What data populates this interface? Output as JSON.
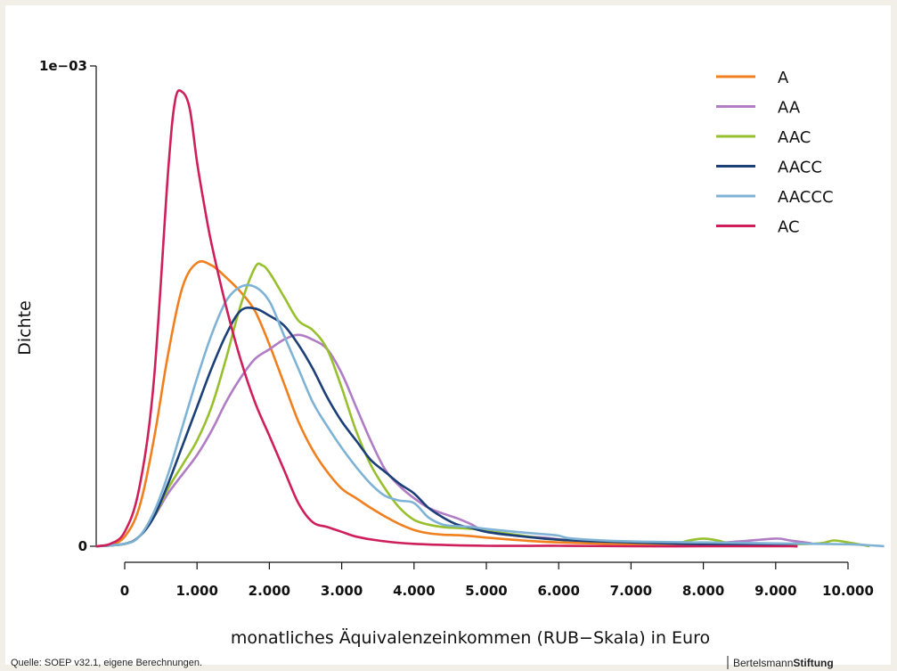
{
  "chart_data": {
    "type": "line",
    "xlabel": "monatliches Äquivalenzeinkommen (RUB−Skala) in Euro",
    "ylabel": "Dichte",
    "x_ticks": [
      0,
      1000,
      2000,
      3000,
      4000,
      5000,
      6000,
      7000,
      8000,
      9000,
      10000
    ],
    "x_tick_labels": [
      "0",
      "1.000",
      "2.000",
      "3.000",
      "4.000",
      "5.000",
      "6.000",
      "7.000",
      "8.000",
      "9.000",
      "10.000"
    ],
    "y_ticks": [
      0,
      0.001
    ],
    "y_tick_labels": [
      "0",
      "1e−03"
    ],
    "xlim": [
      -400,
      10500
    ],
    "ylim": [
      0,
      0.001
    ],
    "grid": false,
    "legend_position": "top-right",
    "series": [
      {
        "name": "A",
        "color": "#f07f1e",
        "x": [
          -400,
          -200,
          0,
          200,
          400,
          600,
          800,
          1000,
          1200,
          1400,
          1600,
          1800,
          2000,
          2200,
          2400,
          2600,
          2800,
          3000,
          3200,
          3400,
          3600,
          3800,
          4000,
          4200,
          4400,
          4600,
          4800,
          5000,
          5500,
          6000,
          7000,
          8000,
          9000,
          9300
        ],
        "y": [
          0,
          3e-06,
          2e-05,
          8e-05,
          0.00022,
          0.0004,
          0.00054,
          0.00059,
          0.000585,
          0.00056,
          0.00053,
          0.00049,
          0.00042,
          0.00034,
          0.00026,
          0.0002,
          0.000155,
          0.00012,
          0.0001,
          8e-05,
          6.2e-05,
          4.6e-05,
          3.4e-05,
          2.7e-05,
          2.4e-05,
          2.3e-05,
          2.1e-05,
          1.8e-05,
          1.2e-05,
          8e-06,
          4e-06,
          2e-06,
          1e-06,
          0
        ]
      },
      {
        "name": "AA",
        "color": "#b07cc3",
        "x": [
          -400,
          0,
          200,
          400,
          600,
          800,
          1000,
          1200,
          1400,
          1600,
          1800,
          2000,
          2200,
          2400,
          2600,
          2800,
          3000,
          3200,
          3400,
          3600,
          3800,
          4000,
          4200,
          4400,
          4600,
          4800,
          5000,
          5400,
          5800,
          6200,
          7000,
          8000,
          8500,
          9000,
          9200,
          9500
        ],
        "y": [
          0,
          5e-06,
          2e-05,
          6e-05,
          0.00011,
          0.00015,
          0.00019,
          0.00024,
          0.0003,
          0.00035,
          0.00039,
          0.00041,
          0.00043,
          0.00044,
          0.00043,
          0.00041,
          0.00036,
          0.00029,
          0.00022,
          0.00016,
          0.000125,
          0.0001,
          8e-05,
          6.8e-05,
          5.8e-05,
          4.5e-05,
          3e-05,
          2.2e-05,
          1.8e-05,
          1.2e-05,
          8e-06,
          6e-06,
          1e-05,
          1.6e-05,
          1.2e-05,
          6e-06
        ]
      },
      {
        "name": "AAC",
        "color": "#97bf2e",
        "x": [
          -400,
          0,
          200,
          400,
          600,
          800,
          1000,
          1200,
          1400,
          1600,
          1800,
          1900,
          2000,
          2200,
          2400,
          2600,
          2800,
          3000,
          3200,
          3400,
          3600,
          3800,
          4000,
          4200,
          4400,
          4600,
          4800,
          5000,
          5400,
          5800,
          6200,
          7000,
          7600,
          7800,
          8000,
          8200,
          8400,
          9000,
          9600,
          9800,
          10000,
          10300
        ],
        "y": [
          0,
          5e-06,
          2e-05,
          6e-05,
          0.00012,
          0.00017,
          0.00022,
          0.00029,
          0.00039,
          0.0005,
          0.00058,
          0.000585,
          0.00057,
          0.00052,
          0.00047,
          0.00045,
          0.00041,
          0.00033,
          0.00024,
          0.00017,
          0.00012,
          8e-05,
          5.5e-05,
          4.5e-05,
          4e-05,
          3.8e-05,
          3.6e-05,
          3.2e-05,
          2.4e-05,
          1.6e-05,
          1.2e-05,
          8e-06,
          6e-06,
          1.2e-05,
          1.6e-05,
          1.2e-05,
          6e-06,
          4e-06,
          6e-06,
          1.2e-05,
          8e-06,
          0
        ]
      },
      {
        "name": "AACC",
        "color": "#1c3f78",
        "x": [
          -400,
          0,
          200,
          400,
          600,
          800,
          1000,
          1200,
          1400,
          1600,
          1800,
          2000,
          2200,
          2400,
          2600,
          2800,
          3000,
          3200,
          3400,
          3600,
          3800,
          4000,
          4200,
          4400,
          4600,
          4800,
          5000,
          5400,
          5800,
          6200,
          7000,
          8000,
          9000,
          9300
        ],
        "y": [
          0,
          5e-06,
          2e-05,
          6e-05,
          0.00013,
          0.00021,
          0.00029,
          0.00037,
          0.00044,
          0.00049,
          0.000495,
          0.00048,
          0.00046,
          0.00042,
          0.00037,
          0.00031,
          0.00026,
          0.00022,
          0.00018,
          0.000155,
          0.00013,
          0.00011,
          8e-05,
          6e-05,
          4.5e-05,
          3.8e-05,
          3e-05,
          2.2e-05,
          1.6e-05,
          1.2e-05,
          8e-06,
          4e-06,
          2e-06,
          0
        ]
      },
      {
        "name": "AACCC",
        "color": "#7fb3d6",
        "x": [
          -400,
          0,
          200,
          400,
          600,
          800,
          1000,
          1200,
          1400,
          1600,
          1800,
          2000,
          2200,
          2400,
          2600,
          2800,
          3000,
          3200,
          3400,
          3600,
          3800,
          4000,
          4200,
          4400,
          4600,
          4800,
          5000,
          5400,
          5800,
          6000,
          6200,
          7000,
          8000,
          9000,
          10000,
          10500
        ],
        "y": [
          0,
          5e-06,
          2e-05,
          7e-05,
          0.00015,
          0.00025,
          0.00035,
          0.00044,
          0.00051,
          0.00054,
          0.00054,
          0.00051,
          0.00044,
          0.00037,
          0.0003,
          0.00025,
          0.000205,
          0.000165,
          0.00013,
          0.000105,
          9.5e-05,
          9e-05,
          6e-05,
          4.5e-05,
          4.2e-05,
          4e-05,
          3.6e-05,
          3e-05,
          2.5e-05,
          2.2e-05,
          1.6e-05,
          1e-05,
          8e-06,
          6e-06,
          4e-06,
          0
        ]
      },
      {
        "name": "AC",
        "color": "#cf1f5a",
        "x": [
          -400,
          -200,
          0,
          200,
          400,
          600,
          700,
          800,
          900,
          1000,
          1100,
          1200,
          1400,
          1600,
          1800,
          2000,
          2200,
          2400,
          2600,
          2800,
          3000,
          3200,
          3500,
          4000,
          5000,
          6000,
          7000,
          8000,
          9000,
          9300
        ],
        "y": [
          0,
          5e-06,
          3e-05,
          0.00012,
          0.00034,
          0.00078,
          0.00093,
          0.000945,
          0.00091,
          0.0008,
          0.00071,
          0.00063,
          0.0005,
          0.00039,
          0.0003,
          0.00023,
          0.00016,
          9e-05,
          5e-05,
          4e-05,
          3e-05,
          2e-05,
          1.2e-05,
          5e-06,
          1e-06,
          1e-06,
          0,
          0,
          0,
          0
        ]
      }
    ]
  },
  "footer": {
    "source": "Quelle: SOEP v32.1, eigene Berechnungen.",
    "brand_regular": "Bertelsmann",
    "brand_bold": "Stiftung"
  }
}
